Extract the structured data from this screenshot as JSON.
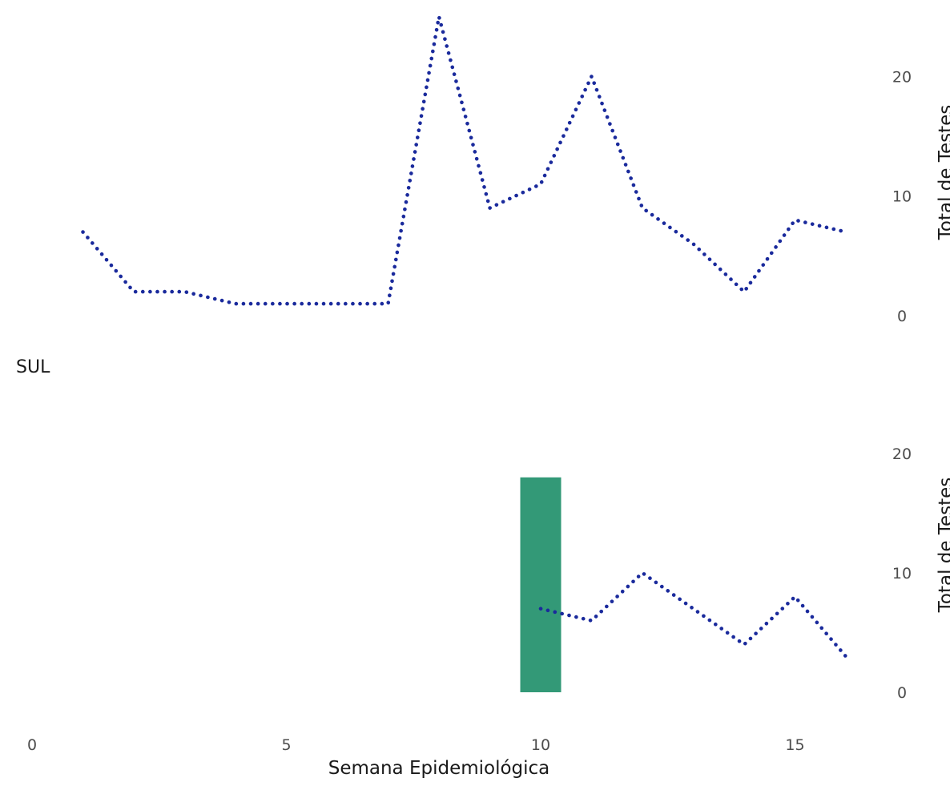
{
  "chart_data": [
    {
      "type": "line",
      "label": "",
      "xlabel": "Semana Epidemiológica",
      "ylabel": "Total de Testes",
      "xlim": [
        0,
        16.5
      ],
      "ylim": [
        0,
        25
      ],
      "y_ticks": [
        0,
        10,
        20
      ],
      "series": [
        {
          "x": [
            1,
            2,
            3,
            4,
            5,
            6,
            7,
            8,
            9,
            10,
            11,
            12,
            13,
            14,
            15,
            16
          ],
          "values": [
            7,
            2,
            2,
            1,
            1,
            1,
            1,
            25,
            9,
            11,
            20,
            9,
            6,
            2,
            8,
            7
          ],
          "style": "dotted",
          "color": "#1a2a9c"
        }
      ],
      "bars": [],
      "grid": false,
      "legend": "none"
    },
    {
      "type": "line",
      "label": "SUL",
      "xlabel": "Semana Epidemiológica",
      "ylabel": "Total de Testes",
      "xlim": [
        0,
        16.5
      ],
      "ylim": [
        0,
        20
      ],
      "x_ticks": [
        0,
        5,
        10,
        15
      ],
      "y_ticks": [
        0,
        10,
        20
      ],
      "series": [
        {
          "x": [
            10,
            11,
            12,
            13,
            14,
            15,
            16
          ],
          "values": [
            7,
            6,
            10,
            7,
            4,
            8,
            3
          ],
          "style": "dotted",
          "color": "#1a2a9c"
        }
      ],
      "bars": [
        {
          "x": 10,
          "value": 18,
          "color": "#339977"
        }
      ],
      "grid": false,
      "legend": "none"
    }
  ]
}
